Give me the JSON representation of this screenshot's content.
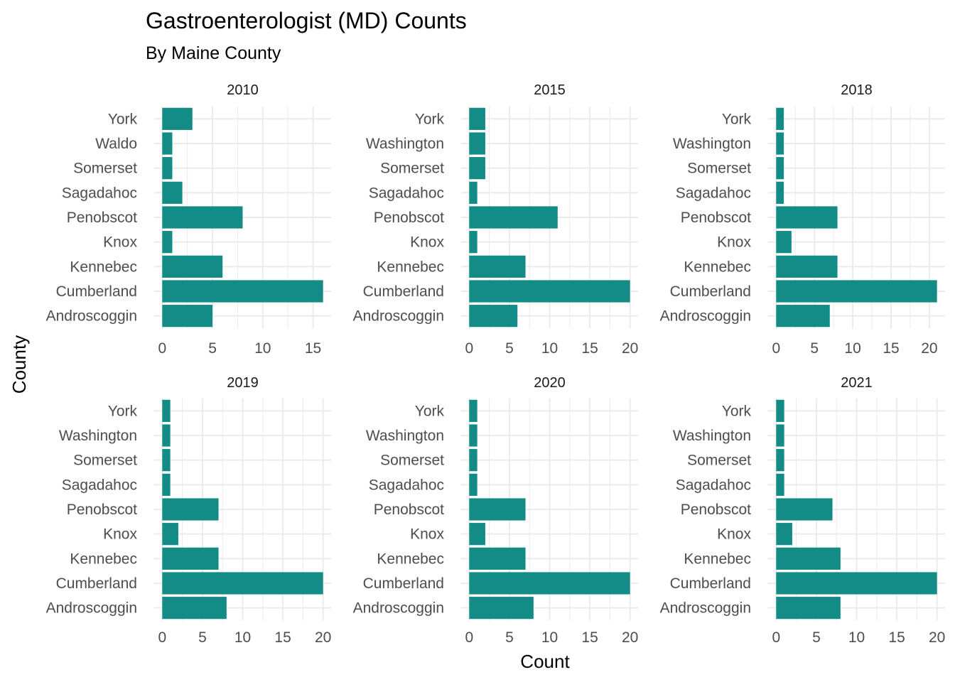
{
  "chart_data": {
    "type": "bar",
    "orientation": "horizontal",
    "title": "Gastroenterologist (MD) Counts",
    "subtitle": "By Maine County",
    "xlabel": "Count",
    "ylabel": "County",
    "bar_color": "#138B87",
    "grid": true,
    "legend": "none",
    "facets": [
      {
        "name": "2010",
        "categories": [
          "York",
          "Waldo",
          "Somerset",
          "Sagadahoc",
          "Penobscot",
          "Knox",
          "Kennebec",
          "Cumberland",
          "Androscoggin"
        ],
        "values": [
          3,
          1,
          1,
          2,
          8,
          1,
          6,
          16,
          5
        ],
        "xlim": [
          0,
          16
        ],
        "xticks": [
          "0",
          "5",
          "10",
          "15"
        ]
      },
      {
        "name": "2015",
        "categories": [
          "York",
          "Washington",
          "Somerset",
          "Sagadahoc",
          "Penobscot",
          "Knox",
          "Kennebec",
          "Cumberland",
          "Androscoggin"
        ],
        "values": [
          2,
          2,
          2,
          1,
          11,
          1,
          7,
          20,
          6
        ],
        "xlim": [
          0,
          20
        ],
        "xticks": [
          "0",
          "5",
          "10",
          "15",
          "20"
        ]
      },
      {
        "name": "2018",
        "categories": [
          "York",
          "Washington",
          "Somerset",
          "Sagadahoc",
          "Penobscot",
          "Knox",
          "Kennebec",
          "Cumberland",
          "Androscoggin"
        ],
        "values": [
          1,
          1,
          1,
          1,
          8,
          2,
          8,
          21,
          7
        ],
        "xlim": [
          0,
          21
        ],
        "xticks": [
          "0",
          "5",
          "10",
          "15",
          "20"
        ]
      },
      {
        "name": "2019",
        "categories": [
          "York",
          "Washington",
          "Somerset",
          "Sagadahoc",
          "Penobscot",
          "Knox",
          "Kennebec",
          "Cumberland",
          "Androscoggin"
        ],
        "values": [
          1,
          1,
          1,
          1,
          7,
          2,
          7,
          20,
          8
        ],
        "xlim": [
          0,
          20
        ],
        "xticks": [
          "0",
          "5",
          "10",
          "15",
          "20"
        ]
      },
      {
        "name": "2020",
        "categories": [
          "York",
          "Washington",
          "Somerset",
          "Sagadahoc",
          "Penobscot",
          "Knox",
          "Kennebec",
          "Cumberland",
          "Androscoggin"
        ],
        "values": [
          1,
          1,
          1,
          1,
          7,
          2,
          7,
          20,
          8
        ],
        "xlim": [
          0,
          20
        ],
        "xticks": [
          "0",
          "5",
          "10",
          "15",
          "20"
        ]
      },
      {
        "name": "2021",
        "categories": [
          "York",
          "Washington",
          "Somerset",
          "Sagadahoc",
          "Penobscot",
          "Knox",
          "Kennebec",
          "Cumberland",
          "Androscoggin"
        ],
        "values": [
          1,
          1,
          1,
          1,
          7,
          2,
          8,
          20,
          8
        ],
        "xlim": [
          0,
          20
        ],
        "xticks": [
          "0",
          "5",
          "10",
          "15",
          "20"
        ]
      }
    ]
  }
}
